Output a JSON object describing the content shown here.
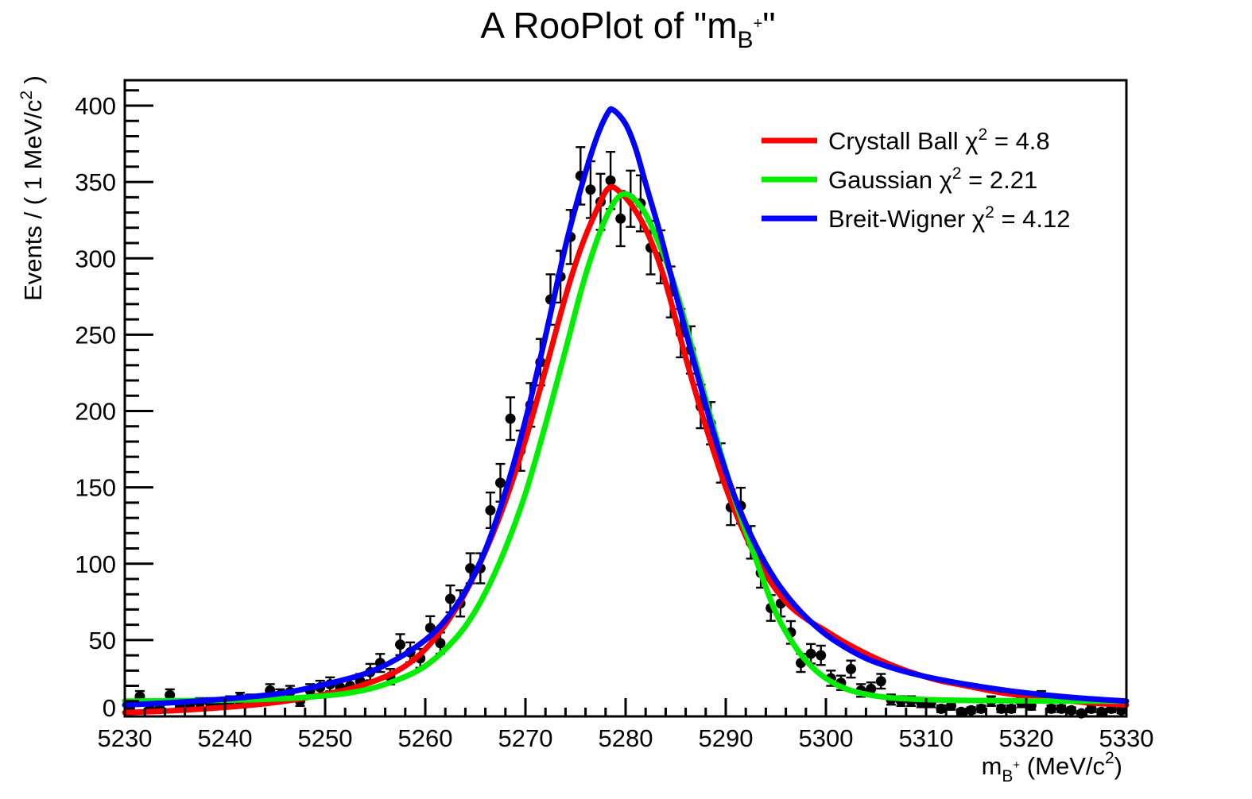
{
  "title": {
    "main": "A RooPlot of \"m",
    "sub": "B",
    "subsup": "+",
    "end": "\""
  },
  "y_axis": {
    "label_main": "Events / ( 1 MeV/c",
    "label_sup": "2",
    "label_end": " )",
    "tick_labels": [
      "0",
      "50",
      "100",
      "150",
      "200",
      "250",
      "300",
      "350",
      "400"
    ],
    "major_step": 50,
    "minor_step": 10
  },
  "x_axis": {
    "label_m": "m",
    "label_sub": "B",
    "label_subsup": "+",
    "label_mid": " (MeV/c",
    "label_sup": "2",
    "label_close": ")",
    "tick_labels": [
      "5230",
      "5240",
      "5250",
      "5260",
      "5270",
      "5280",
      "5290",
      "5300",
      "5310",
      "5320",
      "5330"
    ],
    "major_step": 10,
    "minor_step": 2
  },
  "legend": {
    "chi_symbol": "χ",
    "chi_sup": "2",
    "equals": " = ",
    "entries": [
      {
        "name": "Crystall Ball ",
        "chi2": "4.8",
        "color": "#ff0000"
      },
      {
        "name": "Gaussian ",
        "chi2": "2.21",
        "color": "#00ee00"
      },
      {
        "name": "Breit-Wigner ",
        "chi2": "4.12",
        "color": "#0000ff"
      }
    ]
  },
  "chart_data": {
    "type": "scatter",
    "title": "A RooPlot of \"m_B+\"",
    "xlabel": "m_B+ (MeV/c2)",
    "ylabel": "Events / ( 1 MeV/c2 )",
    "xlim": [
      5230,
      5330
    ],
    "ylim": [
      0,
      416
    ],
    "grid": false,
    "legend_position": "top-right",
    "error_model": "sqrt(n) Poisson, x half-bin 0.5",
    "bin_width_mev": 1,
    "points": {
      "color": "#000000",
      "x": [
        5230.5,
        5231.5,
        5232.5,
        5233.5,
        5234.5,
        5235.5,
        5236.5,
        5237.5,
        5238.5,
        5239.5,
        5240.5,
        5241.5,
        5242.5,
        5243.5,
        5244.5,
        5245.5,
        5246.5,
        5247.5,
        5248.5,
        5249.5,
        5250.5,
        5251.5,
        5252.5,
        5253.5,
        5254.5,
        5255.5,
        5256.5,
        5257.5,
        5258.5,
        5259.5,
        5260.5,
        5261.5,
        5262.5,
        5263.5,
        5264.5,
        5265.5,
        5266.5,
        5267.5,
        5268.5,
        5269.5,
        5270.5,
        5271.5,
        5272.5,
        5273.5,
        5274.5,
        5275.5,
        5276.5,
        5277.5,
        5278.5,
        5279.5,
        5280.5,
        5281.5,
        5282.5,
        5283.5,
        5284.5,
        5285.5,
        5286.5,
        5287.5,
        5288.5,
        5289.5,
        5290.5,
        5291.5,
        5292.5,
        5293.5,
        5294.5,
        5295.5,
        5296.5,
        5297.5,
        5298.5,
        5299.5,
        5300.5,
        5301.5,
        5302.5,
        5303.5,
        5304.5,
        5305.5,
        5306.5,
        5307.5,
        5308.5,
        5309.5,
        5310.5,
        5311.5,
        5312.5,
        5313.5,
        5314.5,
        5315.5,
        5316.5,
        5317.5,
        5318.5,
        5319.5,
        5320.5,
        5321.5,
        5322.5,
        5323.5,
        5324.5,
        5325.5,
        5326.5,
        5327.5,
        5328.5,
        5329.5
      ],
      "y": [
        5,
        13,
        5,
        5,
        14,
        6,
        8,
        9,
        9,
        8,
        10,
        12,
        11,
        11,
        17,
        14,
        16,
        10,
        17,
        19,
        21,
        19,
        20,
        23,
        29,
        35,
        26,
        47,
        42,
        38,
        58,
        48,
        77,
        74,
        97,
        97,
        135,
        153,
        195,
        174,
        204,
        232,
        273,
        288,
        314,
        354,
        345,
        337,
        351,
        326,
        339,
        336,
        307,
        301,
        278,
        251,
        240,
        203,
        192,
        166,
        137,
        138,
        114,
        94,
        71,
        74,
        55,
        35,
        41,
        40,
        25,
        22,
        31,
        17,
        18,
        23,
        11,
        10,
        10,
        9,
        9,
        5,
        7,
        3,
        4,
        5,
        10,
        5,
        5,
        9,
        7,
        13,
        5,
        5,
        4,
        2,
        5,
        3,
        5,
        4
      ]
    },
    "curves": [
      {
        "name": "Crystall Ball",
        "chi2": 4.8,
        "color": "#ff0000",
        "points": [
          [
            5230,
            2.5
          ],
          [
            5234,
            3.5
          ],
          [
            5238,
            5
          ],
          [
            5242,
            7
          ],
          [
            5246,
            10
          ],
          [
            5250,
            14.5
          ],
          [
            5253,
            19
          ],
          [
            5256,
            26
          ],
          [
            5258,
            33
          ],
          [
            5260,
            44
          ],
          [
            5262,
            60
          ],
          [
            5264,
            81
          ],
          [
            5266,
            108
          ],
          [
            5268,
            141
          ],
          [
            5270,
            181
          ],
          [
            5272,
            227
          ],
          [
            5274,
            275
          ],
          [
            5275.5,
            306
          ],
          [
            5277,
            330
          ],
          [
            5278.3,
            346
          ],
          [
            5279.5,
            343
          ],
          [
            5281,
            331
          ],
          [
            5282.5,
            312
          ],
          [
            5284,
            284
          ],
          [
            5286,
            235
          ],
          [
            5288,
            190
          ],
          [
            5290,
            150
          ],
          [
            5292,
            118
          ],
          [
            5294,
            93
          ],
          [
            5296,
            75
          ],
          [
            5298,
            64
          ],
          [
            5300,
            56
          ],
          [
            5302,
            48
          ],
          [
            5305,
            38
          ],
          [
            5308,
            30
          ],
          [
            5311,
            24
          ],
          [
            5314,
            20
          ],
          [
            5318,
            15
          ],
          [
            5322,
            12
          ],
          [
            5326,
            9
          ],
          [
            5330,
            7.5
          ]
        ]
      },
      {
        "name": "Gaussian",
        "chi2": 2.21,
        "color": "#00ee00",
        "points": [
          [
            5230,
            10
          ],
          [
            5238,
            10.4
          ],
          [
            5244,
            11.2
          ],
          [
            5248,
            12.5
          ],
          [
            5252,
            15
          ],
          [
            5255,
            19
          ],
          [
            5258,
            26
          ],
          [
            5260,
            33
          ],
          [
            5262,
            44
          ],
          [
            5264,
            59
          ],
          [
            5266,
            81
          ],
          [
            5268,
            110
          ],
          [
            5270,
            146
          ],
          [
            5272,
            191
          ],
          [
            5274,
            240
          ],
          [
            5276,
            289
          ],
          [
            5278,
            326
          ],
          [
            5279.7,
            342
          ],
          [
            5281.5,
            334
          ],
          [
            5283,
            315
          ],
          [
            5285,
            280
          ],
          [
            5287,
            232
          ],
          [
            5289,
            184
          ],
          [
            5291,
            140
          ],
          [
            5293,
            103
          ],
          [
            5295,
            68
          ],
          [
            5297,
            45
          ],
          [
            5299,
            30
          ],
          [
            5301,
            21
          ],
          [
            5303,
            16
          ],
          [
            5306,
            12.5
          ],
          [
            5310,
            11
          ],
          [
            5315,
            10.4
          ],
          [
            5322,
            10.1
          ],
          [
            5330,
            10
          ]
        ]
      },
      {
        "name": "Breit-Wigner",
        "chi2": 4.12,
        "color": "#0000ff",
        "points": [
          [
            5230,
            7.5
          ],
          [
            5236,
            9.5
          ],
          [
            5242,
            12.5
          ],
          [
            5246,
            15.5
          ],
          [
            5250,
            21
          ],
          [
            5254,
            28
          ],
          [
            5257,
            37
          ],
          [
            5260,
            50
          ],
          [
            5262,
            63
          ],
          [
            5264,
            82
          ],
          [
            5266,
            109
          ],
          [
            5268,
            147
          ],
          [
            5270,
            194
          ],
          [
            5272,
            249
          ],
          [
            5274,
            308
          ],
          [
            5275.5,
            345
          ],
          [
            5277,
            377
          ],
          [
            5278.2,
            395
          ],
          [
            5278.8,
            397
          ],
          [
            5280,
            388
          ],
          [
            5281,
            372
          ],
          [
            5282,
            349
          ],
          [
            5283.5,
            315
          ],
          [
            5285,
            277
          ],
          [
            5287,
            228
          ],
          [
            5289,
            181
          ],
          [
            5291,
            142
          ],
          [
            5293,
            112
          ],
          [
            5295,
            89
          ],
          [
            5297,
            72
          ],
          [
            5299,
            59
          ],
          [
            5301,
            49
          ],
          [
            5304,
            38
          ],
          [
            5307,
            31
          ],
          [
            5310,
            26
          ],
          [
            5314,
            21
          ],
          [
            5318,
            17
          ],
          [
            5322,
            14
          ],
          [
            5326,
            11.7
          ],
          [
            5330,
            10
          ]
        ]
      }
    ]
  }
}
